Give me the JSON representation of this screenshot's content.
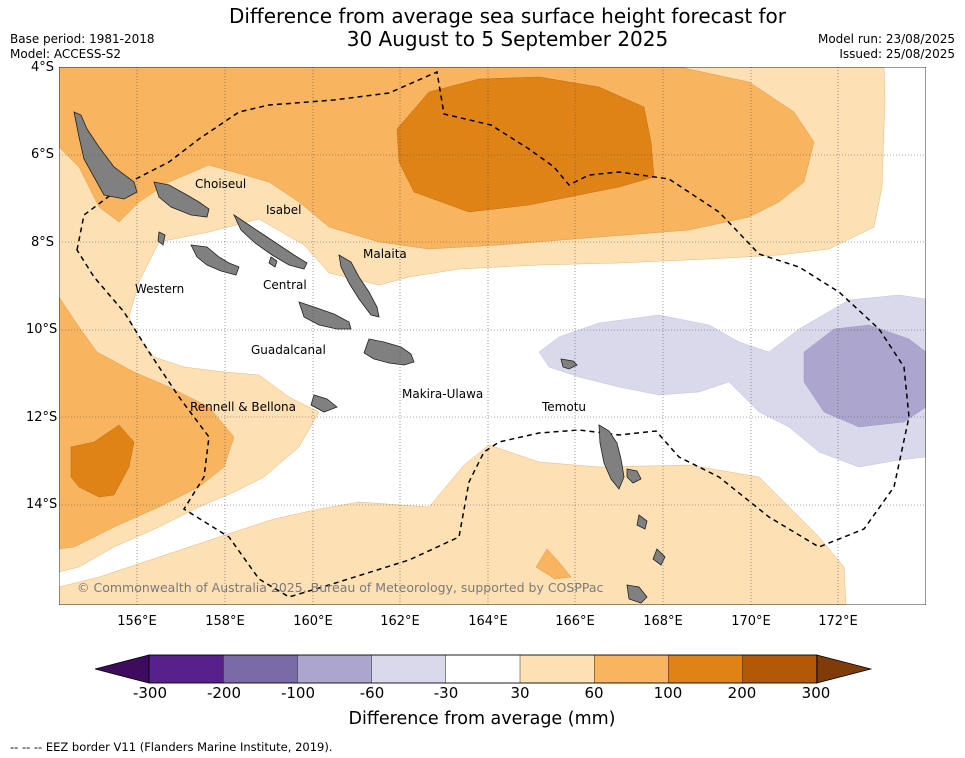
{
  "header": {
    "title_line1": "Difference from average sea surface height forecast for",
    "title_line2": "30 August to 5 September 2025",
    "base_period": "Base period: 1981-2018",
    "model": "Model: ACCESS-S2",
    "model_run": "Model run: 23/08/2025",
    "issued": "Issued: 25/08/2025"
  },
  "axes": {
    "lat_labels": [
      "4°S",
      "6°S",
      "8°S",
      "10°S",
      "12°S",
      "14°S"
    ],
    "lon_labels": [
      "156°E",
      "158°E",
      "160°E",
      "162°E",
      "164°E",
      "166°E",
      "168°E",
      "170°E",
      "172°E"
    ]
  },
  "map": {
    "extent": {
      "lon_min": 154.1,
      "lon_max": 173.9,
      "lat_min": -16.1,
      "lat_max": -3.85
    },
    "provinces": [
      "Choiseul",
      "Isabel",
      "Malaita",
      "Western",
      "Central",
      "Guadalcanal",
      "Makira-Ulawa",
      "Rennell & Bellona",
      "Temotu"
    ],
    "copyright": "© Commonwealth of Australia 2025, Bureau of Meteorology, supported by COSPPac",
    "land_color": "#808080",
    "eez_border_style": "dashed black"
  },
  "colorbar": {
    "title": "Difference from average (mm)",
    "tick_labels": [
      "-300",
      "-200",
      "-100",
      "-60",
      "-30",
      "30",
      "60",
      "100",
      "200",
      "300"
    ],
    "colors": [
      "#3f0b5e",
      "#57208a",
      "#7b6aa8",
      "#aca6cf",
      "#d9d9eb",
      "#ffffff",
      "#fde0b4",
      "#f8b45e",
      "#e08316",
      "#b35806",
      "#7f3b08"
    ]
  },
  "footnote": "-- -- -- EEZ border V11 (Flanders Marine Institute, 2019)."
}
